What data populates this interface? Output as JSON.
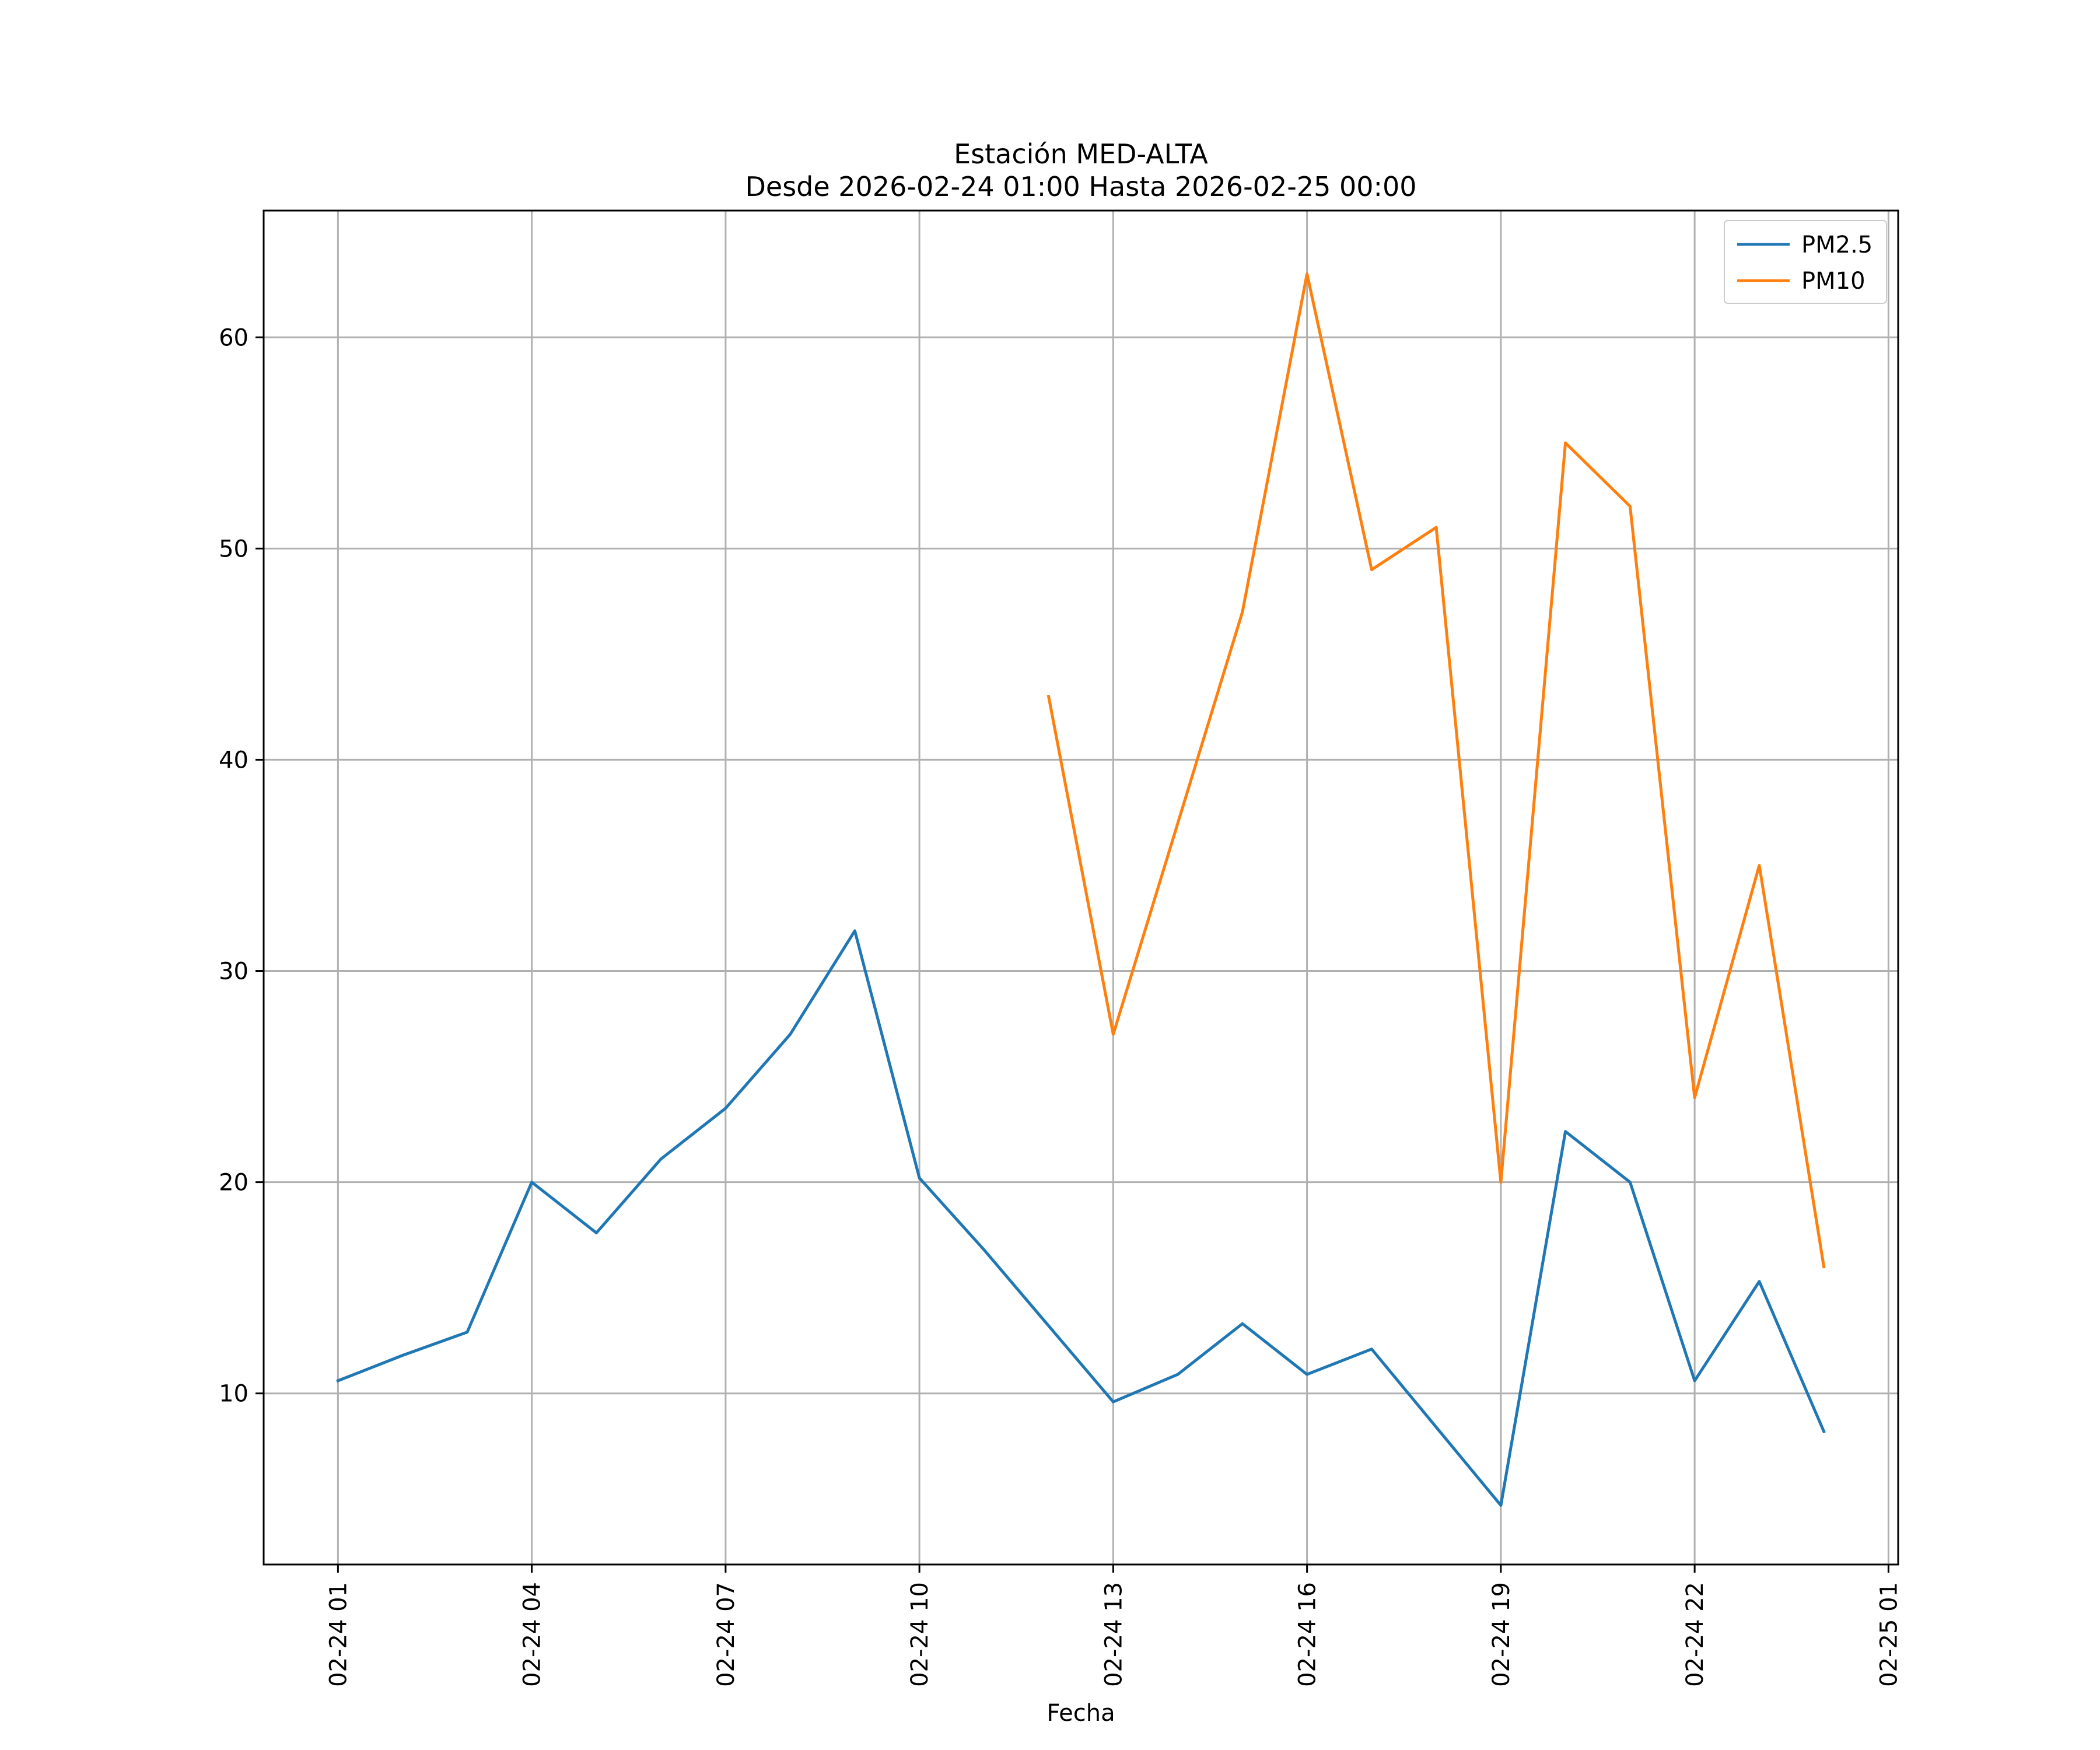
{
  "chart_data": {
    "type": "line",
    "title_line1": "Estación MED-ALTA",
    "title_line2": "Desde 2026-02-24 01:00 Hasta 2026-02-25 00:00",
    "xlabel": "Fecha",
    "ylabel": "",
    "x_hours": [
      1,
      2,
      3,
      4,
      5,
      6,
      7,
      8,
      9,
      10,
      11,
      12,
      13,
      14,
      15,
      16,
      17,
      18,
      19,
      20,
      21,
      22,
      23,
      24
    ],
    "x_ticks": [
      {
        "hour": 1,
        "label": "02-24 01"
      },
      {
        "hour": 4,
        "label": "02-24 04"
      },
      {
        "hour": 7,
        "label": "02-24 07"
      },
      {
        "hour": 10,
        "label": "02-24 10"
      },
      {
        "hour": 13,
        "label": "02-24 13"
      },
      {
        "hour": 16,
        "label": "02-24 16"
      },
      {
        "hour": 19,
        "label": "02-24 19"
      },
      {
        "hour": 22,
        "label": "02-24 22"
      },
      {
        "hour": 25,
        "label": "02-25 01"
      }
    ],
    "y_ticks": [
      10,
      20,
      30,
      40,
      50,
      60
    ],
    "xlim": [
      -0.15,
      25.15
    ],
    "ylim": [
      1.9,
      66
    ],
    "grid": true,
    "legend_position": "top-right",
    "series": [
      {
        "name": "PM2.5",
        "color": "#1f77b4",
        "values": [
          10.6,
          11.8,
          12.9,
          20.0,
          17.6,
          21.1,
          23.5,
          27.0,
          31.9,
          20.2,
          16.8,
          13.2,
          9.6,
          10.9,
          13.3,
          10.9,
          12.1,
          8.4,
          4.7,
          22.4,
          20.0,
          10.6,
          15.3,
          8.2
        ]
      },
      {
        "name": "PM10",
        "color": "#ff7f0e",
        "values": [
          null,
          null,
          null,
          null,
          null,
          null,
          null,
          null,
          null,
          null,
          null,
          43,
          27,
          37,
          47,
          63,
          49,
          51,
          20,
          55,
          52,
          24,
          35,
          16
        ]
      }
    ]
  }
}
